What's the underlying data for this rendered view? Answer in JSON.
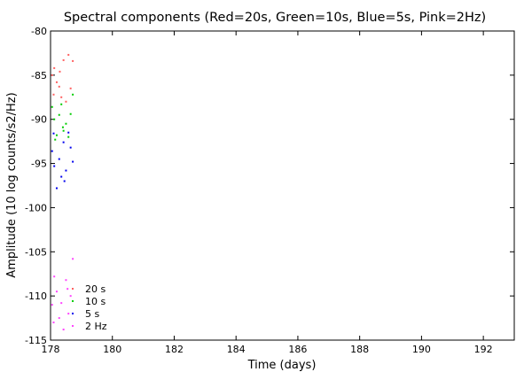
{
  "chart_data": {
    "type": "scatter",
    "title": "Spectral components (Red=20s, Green=10s, Blue=5s, Pink=2Hz)",
    "xlabel": "Time (days)",
    "ylabel": "Amplitude (10 log counts/s2/Hz)",
    "xlim": [
      178,
      193
    ],
    "ylim": [
      -115,
      -80
    ],
    "xticks": [
      "178",
      "180",
      "182",
      "184",
      "186",
      "188",
      "190",
      "192"
    ],
    "xtick_values": [
      178,
      180,
      182,
      184,
      186,
      188,
      190,
      192
    ],
    "yticks": [
      "-80",
      "-85",
      "-90",
      "-95",
      "-100",
      "-105",
      "-110",
      "-115"
    ],
    "ytick_values": [
      -80,
      -85,
      -90,
      -95,
      -100,
      -105,
      -110,
      -115
    ],
    "grid": false,
    "legend_position": "bottom-left",
    "series": [
      {
        "name": "20 s",
        "color": "#ff6060",
        "points": [
          [
            178.05,
            -85.0
          ],
          [
            178.12,
            -84.2
          ],
          [
            178.2,
            -85.8
          ],
          [
            178.28,
            -86.3
          ],
          [
            178.35,
            -87.5
          ],
          [
            178.42,
            -83.3
          ],
          [
            178.5,
            -88.0
          ],
          [
            178.58,
            -82.7
          ],
          [
            178.65,
            -86.5
          ],
          [
            178.72,
            -83.4
          ],
          [
            178.1,
            -87.2
          ],
          [
            178.3,
            -84.6
          ]
        ]
      },
      {
        "name": "10 s",
        "color": "#00cc00",
        "points": [
          [
            178.05,
            -88.6
          ],
          [
            178.12,
            -90.0
          ],
          [
            178.2,
            -91.8
          ],
          [
            178.28,
            -89.5
          ],
          [
            178.35,
            -88.3
          ],
          [
            178.42,
            -91.3
          ],
          [
            178.5,
            -90.5
          ],
          [
            178.58,
            -92.0
          ],
          [
            178.65,
            -89.4
          ],
          [
            178.72,
            -87.2
          ],
          [
            178.15,
            -92.3
          ],
          [
            178.4,
            -90.9
          ]
        ]
      },
      {
        "name": "5 s",
        "color": "#0000ee",
        "points": [
          [
            178.05,
            -93.6
          ],
          [
            178.12,
            -95.3
          ],
          [
            178.2,
            -97.8
          ],
          [
            178.28,
            -94.5
          ],
          [
            178.35,
            -96.5
          ],
          [
            178.42,
            -92.6
          ],
          [
            178.5,
            -95.8
          ],
          [
            178.58,
            -91.5
          ],
          [
            178.65,
            -93.2
          ],
          [
            178.72,
            -94.8
          ],
          [
            178.1,
            -91.6
          ],
          [
            178.45,
            -97.0
          ]
        ]
      },
      {
        "name": "2 Hz",
        "color": "#ff44ff",
        "points": [
          [
            178.05,
            -111.0
          ],
          [
            178.12,
            -107.8
          ],
          [
            178.2,
            -109.5
          ],
          [
            178.28,
            -112.5
          ],
          [
            178.35,
            -110.8
          ],
          [
            178.42,
            -113.8
          ],
          [
            178.5,
            -108.2
          ],
          [
            178.58,
            -112.0
          ],
          [
            178.65,
            -110.0
          ],
          [
            178.72,
            -105.8
          ],
          [
            178.1,
            -113.0
          ],
          [
            178.55,
            -109.2
          ]
        ]
      }
    ]
  }
}
